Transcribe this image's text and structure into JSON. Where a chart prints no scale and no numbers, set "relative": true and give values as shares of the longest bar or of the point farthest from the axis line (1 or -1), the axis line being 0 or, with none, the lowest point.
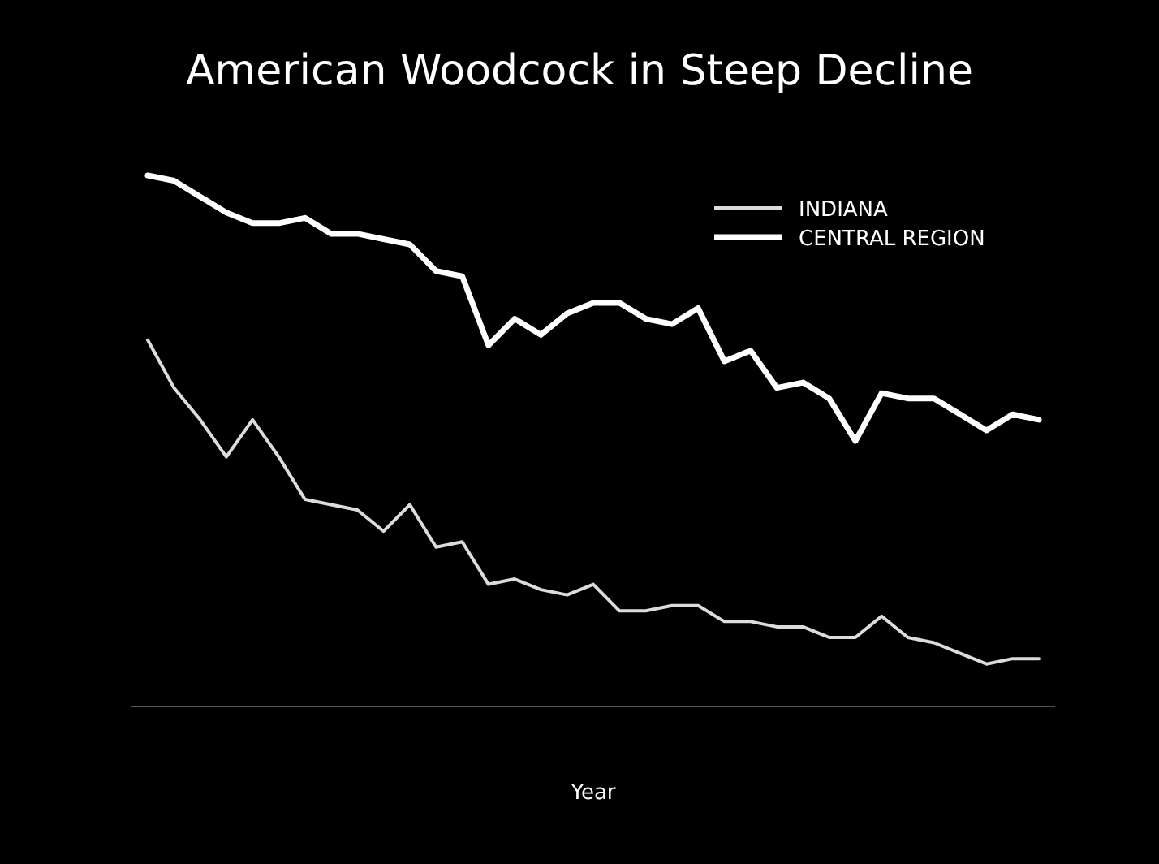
{
  "chart_data": {
    "type": "line",
    "title": "American Woodcock in Steep Decline",
    "xlabel": "Year",
    "relative": true,
    "legend": "top right",
    "grid": false,
    "marker": "none",
    "line_style": "solid",
    "categories": [
      null,
      null,
      null,
      null,
      null,
      null,
      null,
      null,
      null,
      null,
      null,
      null,
      null,
      null,
      null,
      null,
      null,
      null,
      null,
      null,
      null,
      null,
      null,
      null,
      null,
      null,
      null,
      null,
      null,
      null,
      null,
      null,
      null,
      null,
      null
    ],
    "series": [
      {
        "name": "INDIANA",
        "color": "#dcdcdc",
        "values": [
          0.69,
          0.6,
          0.54,
          0.47,
          0.54,
          0.47,
          0.39,
          0.38,
          0.37,
          0.33,
          0.38,
          0.3,
          0.31,
          0.23,
          0.24,
          0.22,
          0.21,
          0.23,
          0.18,
          0.18,
          0.19,
          0.19,
          0.16,
          0.16,
          0.15,
          0.15,
          0.13,
          0.13,
          0.17,
          0.13,
          0.12,
          0.1,
          0.08,
          0.09,
          0.09
        ]
      },
      {
        "name": "CENTRAL REGION",
        "color": "#ffffff",
        "values": [
          1.0,
          0.99,
          0.96,
          0.93,
          0.91,
          0.91,
          0.92,
          0.89,
          0.89,
          0.88,
          0.87,
          0.82,
          0.81,
          0.68,
          0.73,
          0.7,
          0.74,
          0.76,
          0.76,
          0.73,
          0.72,
          0.75,
          0.65,
          0.67,
          0.6,
          0.61,
          0.58,
          0.5,
          0.59,
          0.58,
          0.58,
          0.55,
          0.52,
          0.55,
          0.54
        ]
      }
    ]
  }
}
